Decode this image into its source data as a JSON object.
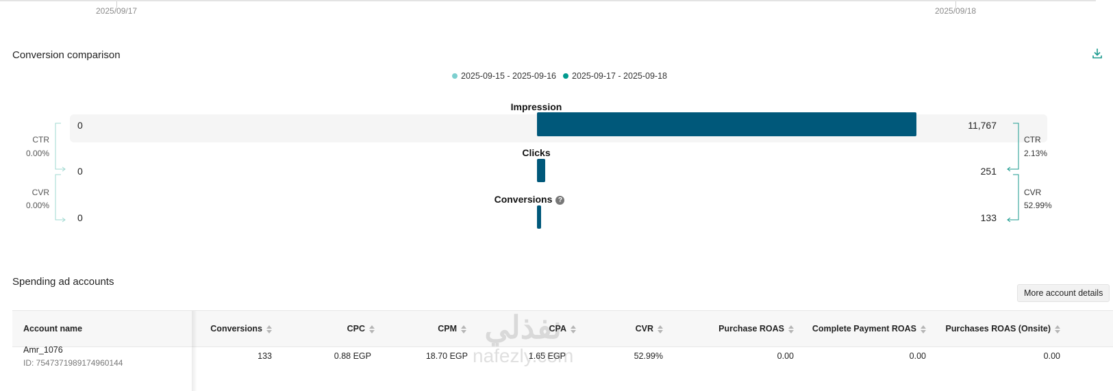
{
  "top_axis": {
    "dates": [
      "2025/09/17",
      "2025/09/18"
    ]
  },
  "conversion": {
    "title": "Conversion comparison",
    "download_icon": "download-icon",
    "legend": [
      {
        "label": "2025-09-15 - 2025-09-16",
        "color": "#7ccfcf"
      },
      {
        "label": "2025-09-17 - 2025-09-18",
        "color": "#009a8e"
      }
    ],
    "stages": [
      {
        "label": "Impression",
        "left_value": "0",
        "right_value": "11,767",
        "value": 11767
      },
      {
        "label": "Clicks",
        "left_value": "0",
        "right_value": "251",
        "value": 251
      },
      {
        "label": "Conversions",
        "left_value": "0",
        "right_value": "133",
        "value": 133
      }
    ],
    "rates_left": [
      {
        "label": "CTR",
        "value": "0.00%"
      },
      {
        "label": "CVR",
        "value": "0.00%"
      }
    ],
    "rates_right": [
      {
        "label": "CTR",
        "value": "2.13%"
      },
      {
        "label": "CVR",
        "value": "52.99%"
      }
    ],
    "bar_color": "#00587a"
  },
  "accounts": {
    "title": "Spending ad accounts",
    "more_button": "More account details",
    "columns": [
      "Account name",
      "Conversions",
      "CPC",
      "CPM",
      "CPA",
      "CVR",
      "Purchase ROAS",
      "Complete Payment ROAS",
      "Purchases ROAS (Onsite)"
    ],
    "rows": [
      {
        "name": "Amr_1076",
        "id": "ID: 7547371989174960144",
        "cells": [
          "133",
          "0.88 EGP",
          "18.70 EGP",
          "1.65 EGP",
          "52.99%",
          "0.00",
          "0.00",
          "0.00"
        ]
      }
    ]
  },
  "watermark": {
    "arabic": "نفذلي",
    "latin": "nafezly.com"
  }
}
